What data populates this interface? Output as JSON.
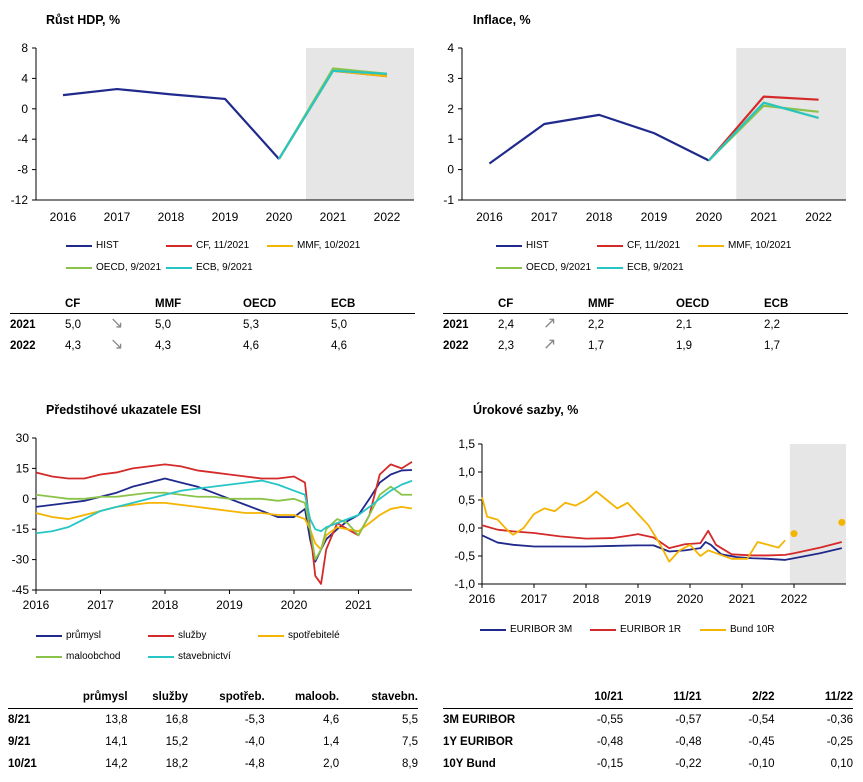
{
  "gdp": {
    "title": "Růst HDP, %",
    "chart_data": {
      "type": "line",
      "title": "Růst HDP, %",
      "categories": [
        "2016",
        "2017",
        "2018",
        "2019",
        "2020",
        "2021",
        "2022"
      ],
      "ylim": [
        -12,
        8
      ],
      "yticks": [
        "8",
        "4",
        "0",
        "-4",
        "-8",
        "-12"
      ],
      "yticks_values": [
        8,
        4,
        0,
        -4,
        -8,
        -12
      ],
      "forecast_shade_start_index": 5,
      "series": [
        {
          "name": "HIST",
          "color": "#1f2a8c",
          "x": [
            0,
            1,
            2,
            3,
            4
          ],
          "values": [
            1.8,
            2.6,
            1.9,
            1.3,
            -6.6
          ]
        },
        {
          "name": "CF, 11/2021",
          "color": "#d42a2a",
          "x": [
            4,
            5,
            6
          ],
          "values": [
            -6.6,
            5.0,
            4.3
          ]
        },
        {
          "name": "MMF, 10/2021",
          "color": "#f4b400",
          "x": [
            4,
            5,
            6
          ],
          "values": [
            -6.6,
            5.0,
            4.3
          ]
        },
        {
          "name": "OECD, 9/2021",
          "color": "#8bc34a",
          "x": [
            4,
            5,
            6
          ],
          "values": [
            -6.6,
            5.3,
            4.6
          ]
        },
        {
          "name": "ECB, 9/2021",
          "color": "#26c6c6",
          "x": [
            4,
            5,
            6
          ],
          "values": [
            -6.6,
            5.0,
            4.6
          ]
        }
      ]
    },
    "table": {
      "headers": [
        "CF",
        "MMF",
        "OECD",
        "ECB"
      ],
      "rows": [
        {
          "year": "2021",
          "cf": "5,0",
          "mmf": "5,0",
          "oecd": "5,3",
          "ecb": "5,0"
        },
        {
          "year": "2022",
          "cf": "4,3",
          "mmf": "4,3",
          "oecd": "4,6",
          "ecb": "4,6"
        }
      ]
    }
  },
  "infl": {
    "title": "Inflace, %",
    "chart_data": {
      "type": "line",
      "title": "Inflace, %",
      "categories": [
        "2016",
        "2017",
        "2018",
        "2019",
        "2020",
        "2021",
        "2022"
      ],
      "ylim": [
        -1,
        4
      ],
      "yticks": [
        "4",
        "3",
        "2",
        "1",
        "0",
        "-1"
      ],
      "yticks_values": [
        4,
        3,
        2,
        1,
        0,
        -1
      ],
      "forecast_shade_start_index": 5,
      "series": [
        {
          "name": "HIST",
          "color": "#1f2a8c",
          "x": [
            0,
            1,
            2,
            3,
            4
          ],
          "values": [
            0.2,
            1.5,
            1.8,
            1.2,
            0.3
          ]
        },
        {
          "name": "CF, 11/2021",
          "color": "#d42a2a",
          "x": [
            4,
            5,
            6
          ],
          "values": [
            0.3,
            2.4,
            2.3
          ]
        },
        {
          "name": "MMF, 10/2021",
          "color": "#f4b400",
          "x": [
            4,
            5,
            6
          ],
          "values": [
            0.3,
            2.2,
            1.7
          ]
        },
        {
          "name": "OECD, 9/2021",
          "color": "#8bc34a",
          "x": [
            4,
            5,
            6
          ],
          "values": [
            0.3,
            2.1,
            1.9
          ]
        },
        {
          "name": "ECB, 9/2021",
          "color": "#26c6c6",
          "x": [
            4,
            5,
            6
          ],
          "values": [
            0.3,
            2.2,
            1.7
          ]
        }
      ]
    },
    "table": {
      "headers": [
        "CF",
        "MMF",
        "OECD",
        "ECB"
      ],
      "rows": [
        {
          "year": "2021",
          "cf": "2,4",
          "mmf": "2,2",
          "oecd": "2,1",
          "ecb": "2,2"
        },
        {
          "year": "2022",
          "cf": "2,3",
          "mmf": "1,7",
          "oecd": "1,9",
          "ecb": "1,7"
        }
      ]
    }
  },
  "esi": {
    "title": "Předstihové ukazatele ESI",
    "chart_data": {
      "type": "line",
      "title": "Předstihové ukazatele ESI",
      "x_years": [
        "2016",
        "2017",
        "2018",
        "2019",
        "2020",
        "2021"
      ],
      "x_start": 2016.0,
      "x_end": 2021.83,
      "ylim": [
        -45,
        30
      ],
      "yticks": [
        "30",
        "15",
        "0",
        "-15",
        "-30",
        "-45"
      ],
      "yticks_values": [
        30,
        15,
        0,
        -15,
        -30,
        -45
      ],
      "series": [
        {
          "name": "průmysl",
          "color": "#1f2a8c",
          "x": [
            2016.0,
            2016.25,
            2016.5,
            2016.75,
            2017.0,
            2017.25,
            2017.5,
            2017.75,
            2018.0,
            2018.25,
            2018.5,
            2018.75,
            2019.0,
            2019.25,
            2019.5,
            2019.75,
            2020.0,
            2020.17,
            2020.25,
            2020.33,
            2020.42,
            2020.5,
            2020.67,
            2020.83,
            2021.0,
            2021.17,
            2021.33,
            2021.5,
            2021.67,
            2021.83
          ],
          "values": [
            -4,
            -3,
            -2,
            -1,
            1,
            3,
            6,
            8,
            10,
            8,
            6,
            3,
            0,
            -3,
            -6,
            -9,
            -9,
            -5,
            -20,
            -31,
            -25,
            -20,
            -15,
            -11,
            -8,
            0,
            8,
            12,
            14,
            14.2
          ]
        },
        {
          "name": "služby",
          "color": "#d42a2a",
          "x": [
            2016.0,
            2016.25,
            2016.5,
            2016.75,
            2017.0,
            2017.25,
            2017.5,
            2017.75,
            2018.0,
            2018.25,
            2018.5,
            2018.75,
            2019.0,
            2019.25,
            2019.5,
            2019.75,
            2020.0,
            2020.17,
            2020.25,
            2020.33,
            2020.42,
            2020.5,
            2020.67,
            2020.83,
            2021.0,
            2021.17,
            2021.33,
            2021.5,
            2021.67,
            2021.83
          ],
          "values": [
            13,
            11,
            10,
            10,
            12,
            13,
            15,
            16,
            17,
            16,
            14,
            13,
            12,
            11,
            10,
            10,
            11,
            8,
            -15,
            -38,
            -42,
            -25,
            -12,
            -15,
            -18,
            -8,
            12,
            17,
            15,
            18.2
          ]
        },
        {
          "name": "spotřebitelé",
          "color": "#f4b400",
          "x": [
            2016.0,
            2016.25,
            2016.5,
            2016.75,
            2017.0,
            2017.25,
            2017.5,
            2017.75,
            2018.0,
            2018.25,
            2018.5,
            2018.75,
            2019.0,
            2019.25,
            2019.5,
            2019.75,
            2020.0,
            2020.17,
            2020.25,
            2020.33,
            2020.42,
            2020.5,
            2020.67,
            2020.83,
            2021.0,
            2021.17,
            2021.33,
            2021.5,
            2021.67,
            2021.83
          ],
          "values": [
            -7,
            -9,
            -10,
            -8,
            -6,
            -4,
            -3,
            -2,
            -2,
            -3,
            -4,
            -5,
            -6,
            -7,
            -7,
            -8,
            -8,
            -10,
            -15,
            -22,
            -25,
            -18,
            -14,
            -15,
            -16,
            -12,
            -8,
            -5,
            -4,
            -4.8
          ]
        },
        {
          "name": "maloobchod",
          "color": "#8bc34a",
          "x": [
            2016.0,
            2016.25,
            2016.5,
            2016.75,
            2017.0,
            2017.25,
            2017.5,
            2017.75,
            2018.0,
            2018.25,
            2018.5,
            2018.75,
            2019.0,
            2019.25,
            2019.5,
            2019.75,
            2020.0,
            2020.17,
            2020.25,
            2020.33,
            2020.42,
            2020.5,
            2020.67,
            2020.83,
            2021.0,
            2021.17,
            2021.33,
            2021.5,
            2021.67,
            2021.83
          ],
          "values": [
            2,
            1,
            0,
            0,
            1,
            1,
            2,
            3,
            3,
            2,
            1,
            1,
            0,
            0,
            0,
            -1,
            0,
            -2,
            -15,
            -30,
            -25,
            -15,
            -10,
            -12,
            -18,
            -8,
            2,
            6,
            2,
            2.0
          ]
        },
        {
          "name": "stavebnictví",
          "color": "#26c6c6",
          "x": [
            2016.0,
            2016.25,
            2016.5,
            2016.75,
            2017.0,
            2017.25,
            2017.5,
            2017.75,
            2018.0,
            2018.25,
            2018.5,
            2018.75,
            2019.0,
            2019.25,
            2019.5,
            2019.75,
            2020.0,
            2020.17,
            2020.25,
            2020.33,
            2020.42,
            2020.5,
            2020.67,
            2020.83,
            2021.0,
            2021.17,
            2021.33,
            2021.5,
            2021.67,
            2021.83
          ],
          "values": [
            -17,
            -16,
            -14,
            -10,
            -6,
            -4,
            -2,
            0,
            2,
            4,
            5,
            6,
            7,
            8,
            9,
            7,
            4,
            2,
            -10,
            -15,
            -16,
            -14,
            -12,
            -10,
            -8,
            -4,
            0,
            4,
            7,
            8.9
          ]
        }
      ]
    },
    "table": {
      "headers": [
        "průmysl",
        "služby",
        "spotřeb.",
        "maloob.",
        "stavebn."
      ],
      "rows": [
        {
          "label": "8/21",
          "values": [
            "13,8",
            "16,8",
            "-5,3",
            "4,6",
            "5,5"
          ]
        },
        {
          "label": "9/21",
          "values": [
            "14,1",
            "15,2",
            "-4,0",
            "1,4",
            "7,5"
          ]
        },
        {
          "label": "10/21",
          "values": [
            "14,2",
            "18,2",
            "-4,8",
            "2,0",
            "8,9"
          ]
        }
      ]
    }
  },
  "rates": {
    "title": "Úrokové sazby, %",
    "chart_data": {
      "type": "line",
      "title": "Úrokové sazby, %",
      "x_years": [
        "2016",
        "2017",
        "2018",
        "2019",
        "2020",
        "2021",
        "2022"
      ],
      "x_start": 2016.0,
      "x_end": 2023.0,
      "ylim": [
        -1.0,
        1.5
      ],
      "yticks": [
        "1,5",
        "1,0",
        "0,5",
        "0,0",
        "-0,5",
        "-1,0"
      ],
      "yticks_values": [
        1.5,
        1.0,
        0.5,
        0.0,
        -0.5,
        -1.0
      ],
      "forecast_shade_start": 2021.92,
      "series": [
        {
          "name": "EURIBOR 3M",
          "color": "#1f2a8c",
          "x": [
            2016.0,
            2016.3,
            2016.6,
            2017.0,
            2017.5,
            2018.0,
            2018.5,
            2019.0,
            2019.3,
            2019.6,
            2019.9,
            2020.2,
            2020.3,
            2020.4,
            2020.6,
            2020.9,
            2021.2,
            2021.5,
            2021.83,
            2022.0,
            2022.5,
            2022.92
          ],
          "values": [
            -0.13,
            -0.26,
            -0.3,
            -0.33,
            -0.33,
            -0.33,
            -0.32,
            -0.31,
            -0.31,
            -0.42,
            -0.4,
            -0.36,
            -0.25,
            -0.3,
            -0.47,
            -0.52,
            -0.54,
            -0.55,
            -0.57,
            -0.54,
            -0.45,
            -0.36
          ]
        },
        {
          "name": "EURIBOR 1R",
          "color": "#d42a2a",
          "x": [
            2016.0,
            2016.3,
            2016.6,
            2017.0,
            2017.5,
            2018.0,
            2018.5,
            2018.8,
            2019.0,
            2019.3,
            2019.6,
            2019.9,
            2020.2,
            2020.35,
            2020.5,
            2020.8,
            2021.2,
            2021.5,
            2021.83,
            2022.0,
            2022.5,
            2022.92
          ],
          "values": [
            0.05,
            -0.03,
            -0.06,
            -0.09,
            -0.15,
            -0.19,
            -0.18,
            -0.14,
            -0.11,
            -0.17,
            -0.36,
            -0.29,
            -0.27,
            -0.05,
            -0.3,
            -0.47,
            -0.49,
            -0.49,
            -0.48,
            -0.45,
            -0.35,
            -0.25
          ]
        },
        {
          "name": "Bund 10R",
          "color": "#f4b400",
          "x": [
            2016.0,
            2016.1,
            2016.3,
            2016.5,
            2016.6,
            2016.8,
            2017.0,
            2017.2,
            2017.4,
            2017.6,
            2017.8,
            2018.0,
            2018.2,
            2018.4,
            2018.6,
            2018.8,
            2019.0,
            2019.2,
            2019.4,
            2019.6,
            2019.8,
            2020.0,
            2020.2,
            2020.35,
            2020.5,
            2020.8,
            2021.1,
            2021.3,
            2021.5,
            2021.7,
            2021.83
          ],
          "values": [
            0.55,
            0.2,
            0.15,
            -0.05,
            -0.12,
            0.0,
            0.25,
            0.35,
            0.3,
            0.45,
            0.4,
            0.5,
            0.65,
            0.5,
            0.35,
            0.45,
            0.25,
            0.05,
            -0.25,
            -0.6,
            -0.4,
            -0.3,
            -0.5,
            -0.4,
            -0.45,
            -0.55,
            -0.55,
            -0.25,
            -0.3,
            -0.35,
            -0.22
          ]
        }
      ],
      "forecast_points": [
        {
          "series": "Bund 10R",
          "x": 2022.0,
          "value": -0.1
        },
        {
          "series": "Bund 10R",
          "x": 2022.92,
          "value": 0.1
        }
      ]
    },
    "table": {
      "headers": [
        "10/21",
        "11/21",
        "2/22",
        "11/22"
      ],
      "rows": [
        {
          "label": "3M EURIBOR",
          "values": [
            "-0,55",
            "-0,57",
            "-0,54",
            "-0,36"
          ]
        },
        {
          "label": "1Y EURIBOR",
          "values": [
            "-0,48",
            "-0,48",
            "-0,45",
            "-0,25"
          ]
        },
        {
          "label": "10Y Bund",
          "values": [
            "-0,15",
            "-0,22",
            "-0,10",
            "0,10"
          ]
        }
      ]
    }
  },
  "colors": {
    "shade": "#e6e6e6",
    "arrow": "#8c8c8c"
  }
}
